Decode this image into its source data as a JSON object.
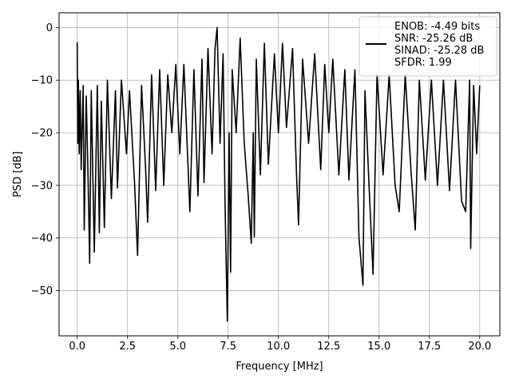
{
  "chart_data": {
    "type": "line",
    "title": "",
    "xlabel": "Frequency [MHz]",
    "ylabel": "PSD [dB]",
    "xlim": [
      -0.9,
      21.0
    ],
    "ylim": [
      -58.6,
      2.8
    ],
    "xticks": [
      0.0,
      2.5,
      5.0,
      7.5,
      10.0,
      12.5,
      15.0,
      17.5,
      20.0
    ],
    "xtick_labels": [
      "0.0",
      "2.5",
      "5.0",
      "7.5",
      "10.0",
      "12.5",
      "15.0",
      "17.5",
      "20.0"
    ],
    "yticks": [
      0,
      -10,
      -20,
      -30,
      -40,
      -50
    ],
    "ytick_labels": [
      "0",
      "−10",
      "−20",
      "−30",
      "−40",
      "−50"
    ],
    "grid": true,
    "legend_position": "top-right",
    "legend_lines": [
      "ENOB: -4.49 bits",
      "SNR: -25.26 dB",
      "SINAD: -25.28 dB",
      "SFDR: 1.99"
    ],
    "series": [
      {
        "color": "#000000",
        "style": "noise-floor PSD trace",
        "points": [
          [
            0.0,
            -2.8
          ],
          [
            0.03,
            -22
          ],
          [
            0.06,
            -10
          ],
          [
            0.1,
            -24
          ],
          [
            0.15,
            -12
          ],
          [
            0.2,
            -27
          ],
          [
            0.3,
            -11
          ],
          [
            0.35,
            -38.5
          ],
          [
            0.45,
            -13
          ],
          [
            0.55,
            -30
          ],
          [
            0.62,
            -44.8
          ],
          [
            0.7,
            -12
          ],
          [
            0.85,
            -42.7
          ],
          [
            1.0,
            -11
          ],
          [
            1.1,
            -39
          ],
          [
            1.2,
            -14
          ],
          [
            1.35,
            -38
          ],
          [
            1.5,
            -10
          ],
          [
            1.7,
            -32.5
          ],
          [
            1.9,
            -12
          ],
          [
            2.0,
            -30.5
          ],
          [
            2.2,
            -10
          ],
          [
            2.45,
            -24
          ],
          [
            2.6,
            -12
          ],
          [
            2.85,
            -29.5
          ],
          [
            3.0,
            -43.3
          ],
          [
            3.2,
            -11
          ],
          [
            3.4,
            -27
          ],
          [
            3.5,
            -37
          ],
          [
            3.7,
            -9
          ],
          [
            3.9,
            -31
          ],
          [
            4.1,
            -8
          ],
          [
            4.3,
            -30
          ],
          [
            4.5,
            -9
          ],
          [
            4.7,
            -20
          ],
          [
            4.9,
            -7
          ],
          [
            5.1,
            -24
          ],
          [
            5.3,
            -7
          ],
          [
            5.6,
            -35
          ],
          [
            5.8,
            -8
          ],
          [
            6.0,
            -32
          ],
          [
            6.2,
            -6
          ],
          [
            6.3,
            -29.5
          ],
          [
            6.5,
            -4
          ],
          [
            6.7,
            -24
          ],
          [
            6.85,
            -4
          ],
          [
            6.95,
            0.0
          ],
          [
            7.1,
            -22
          ],
          [
            7.25,
            -5
          ],
          [
            7.35,
            -34
          ],
          [
            7.46,
            -55.8
          ],
          [
            7.55,
            -20
          ],
          [
            7.62,
            -46.5
          ],
          [
            7.7,
            -8
          ],
          [
            7.9,
            -20
          ],
          [
            8.1,
            -2
          ],
          [
            8.3,
            -22
          ],
          [
            8.5,
            -32
          ],
          [
            8.65,
            -41
          ],
          [
            8.75,
            -20
          ],
          [
            8.8,
            -39.8
          ],
          [
            8.9,
            -6
          ],
          [
            9.1,
            -28
          ],
          [
            9.3,
            -3
          ],
          [
            9.5,
            -26
          ],
          [
            9.8,
            -5
          ],
          [
            10.0,
            -20
          ],
          [
            10.2,
            -3
          ],
          [
            10.4,
            -19
          ],
          [
            10.7,
            -4
          ],
          [
            10.9,
            -28
          ],
          [
            11.0,
            -37.5
          ],
          [
            11.2,
            -6
          ],
          [
            11.5,
            -22
          ],
          [
            11.8,
            -5
          ],
          [
            12.1,
            -27
          ],
          [
            12.3,
            -7
          ],
          [
            12.5,
            -20
          ],
          [
            12.7,
            -6
          ],
          [
            13.0,
            -28
          ],
          [
            13.3,
            -8
          ],
          [
            13.5,
            -29
          ],
          [
            13.8,
            -8
          ],
          [
            14.0,
            -40
          ],
          [
            14.2,
            -49
          ],
          [
            14.3,
            -12
          ],
          [
            14.5,
            -30
          ],
          [
            14.7,
            -46.9
          ],
          [
            14.9,
            -9
          ],
          [
            15.2,
            -28
          ],
          [
            15.5,
            -9
          ],
          [
            15.8,
            -30
          ],
          [
            16.0,
            -35
          ],
          [
            16.3,
            -9
          ],
          [
            16.6,
            -28
          ],
          [
            16.8,
            -38.5
          ],
          [
            17.0,
            -10
          ],
          [
            17.3,
            -29
          ],
          [
            17.6,
            -10
          ],
          [
            17.9,
            -30
          ],
          [
            18.2,
            -10
          ],
          [
            18.5,
            -31
          ],
          [
            18.8,
            -10
          ],
          [
            19.1,
            -33
          ],
          [
            19.3,
            -35
          ],
          [
            19.5,
            -10
          ],
          [
            19.55,
            -42
          ],
          [
            19.7,
            -11
          ],
          [
            19.85,
            -24
          ],
          [
            20.0,
            -11
          ]
        ]
      }
    ]
  }
}
